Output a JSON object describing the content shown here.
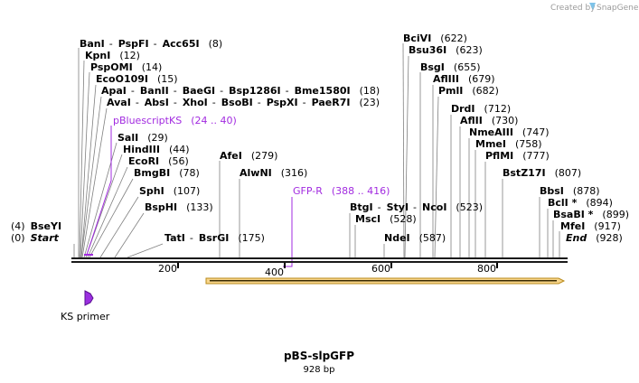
{
  "header": {
    "created_by": "Created by",
    "brand": "SnapGene"
  },
  "plasmid": {
    "name": "pBS-slpGFP",
    "length_label": "928 bp",
    "length": 928
  },
  "axis": {
    "ticks": [
      "200",
      "400",
      "600",
      "800"
    ]
  },
  "colors": {
    "primer": "#a22be0",
    "feature_fill": "#f7d58b",
    "feature_border": "#b88a1a",
    "backbone": "#1a1a1a"
  },
  "sites": [
    {
      "parts": [
        "BanI",
        "PspFI",
        "Acc65I"
      ],
      "pos": "(8)"
    },
    {
      "parts": [
        "KpnI"
      ],
      "pos": "(12)"
    },
    {
      "parts": [
        "PspOMI"
      ],
      "pos": "(14)"
    },
    {
      "parts": [
        "EcoO109I"
      ],
      "pos": "(15)"
    },
    {
      "parts": [
        "ApaI",
        "BanII",
        "BaeGI",
        "Bsp1286I",
        "Bme1580I"
      ],
      "pos": "(18)"
    },
    {
      "parts": [
        "AvaI",
        "AbsI",
        "XhoI",
        "BsoBI",
        "PspXI",
        "PaeR7I"
      ],
      "pos": "(23)"
    },
    {
      "parts": [
        "SalI"
      ],
      "pos": "(29)"
    },
    {
      "parts": [
        "HindIII"
      ],
      "pos": "(44)"
    },
    {
      "parts": [
        "EcoRI"
      ],
      "pos": "(56)"
    },
    {
      "parts": [
        "BmgBI"
      ],
      "pos": "(78)"
    },
    {
      "parts": [
        "SphI"
      ],
      "pos": "(107)"
    },
    {
      "parts": [
        "BspHI"
      ],
      "pos": "(133)"
    },
    {
      "parts": [
        "TatI",
        "BsrGI"
      ],
      "pos": "(175)"
    },
    {
      "parts": [
        "AfeI"
      ],
      "pos": "(279)"
    },
    {
      "parts": [
        "AlwNI"
      ],
      "pos": "(316)"
    },
    {
      "parts": [
        "BciVI"
      ],
      "pos": "(622)"
    },
    {
      "parts": [
        "Bsu36I"
      ],
      "pos": "(623)"
    },
    {
      "parts": [
        "BsgI"
      ],
      "pos": "(655)"
    },
    {
      "parts": [
        "AflIII"
      ],
      "pos": "(679)"
    },
    {
      "parts": [
        "PmlI"
      ],
      "pos": "(682)"
    },
    {
      "parts": [
        "DrdI"
      ],
      "pos": "(712)"
    },
    {
      "parts": [
        "AflII"
      ],
      "pos": "(730)"
    },
    {
      "parts": [
        "NmeAIII"
      ],
      "pos": "(747)"
    },
    {
      "parts": [
        "MmeI"
      ],
      "pos": "(758)"
    },
    {
      "parts": [
        "PflMI"
      ],
      "pos": "(777)"
    },
    {
      "parts": [
        "BstZ17I"
      ],
      "pos": "(807)"
    },
    {
      "parts": [
        "BtgI",
        "StyI",
        "NcoI"
      ],
      "pos": "(523)"
    },
    {
      "parts": [
        "MscI"
      ],
      "pos": "(528)"
    },
    {
      "parts": [
        "NdeI"
      ],
      "pos": "(587)"
    },
    {
      "parts": [
        "BbsI"
      ],
      "pos": "(878)"
    },
    {
      "parts": [
        "BclI *"
      ],
      "pos": "(894)"
    },
    {
      "parts": [
        "BsaBI *"
      ],
      "pos": "(899)"
    },
    {
      "parts": [
        "MfeI"
      ],
      "pos": "(917)"
    },
    {
      "parts": [
        "BseYI"
      ],
      "pos": "(4)",
      "pos_first": true
    },
    {
      "parts": [
        "Start"
      ],
      "pos": "(0)",
      "pos_first": true,
      "italic": true
    },
    {
      "parts": [
        "End"
      ],
      "pos": "(928)",
      "italic": true
    }
  ],
  "primers": [
    {
      "name": "pBluescriptKS",
      "range": "(24 .. 40)"
    },
    {
      "name": "GFP-R",
      "range": "(388 .. 416)"
    }
  ],
  "features": [
    {
      "name": "KS primer",
      "start": 24,
      "end": 40
    }
  ]
}
